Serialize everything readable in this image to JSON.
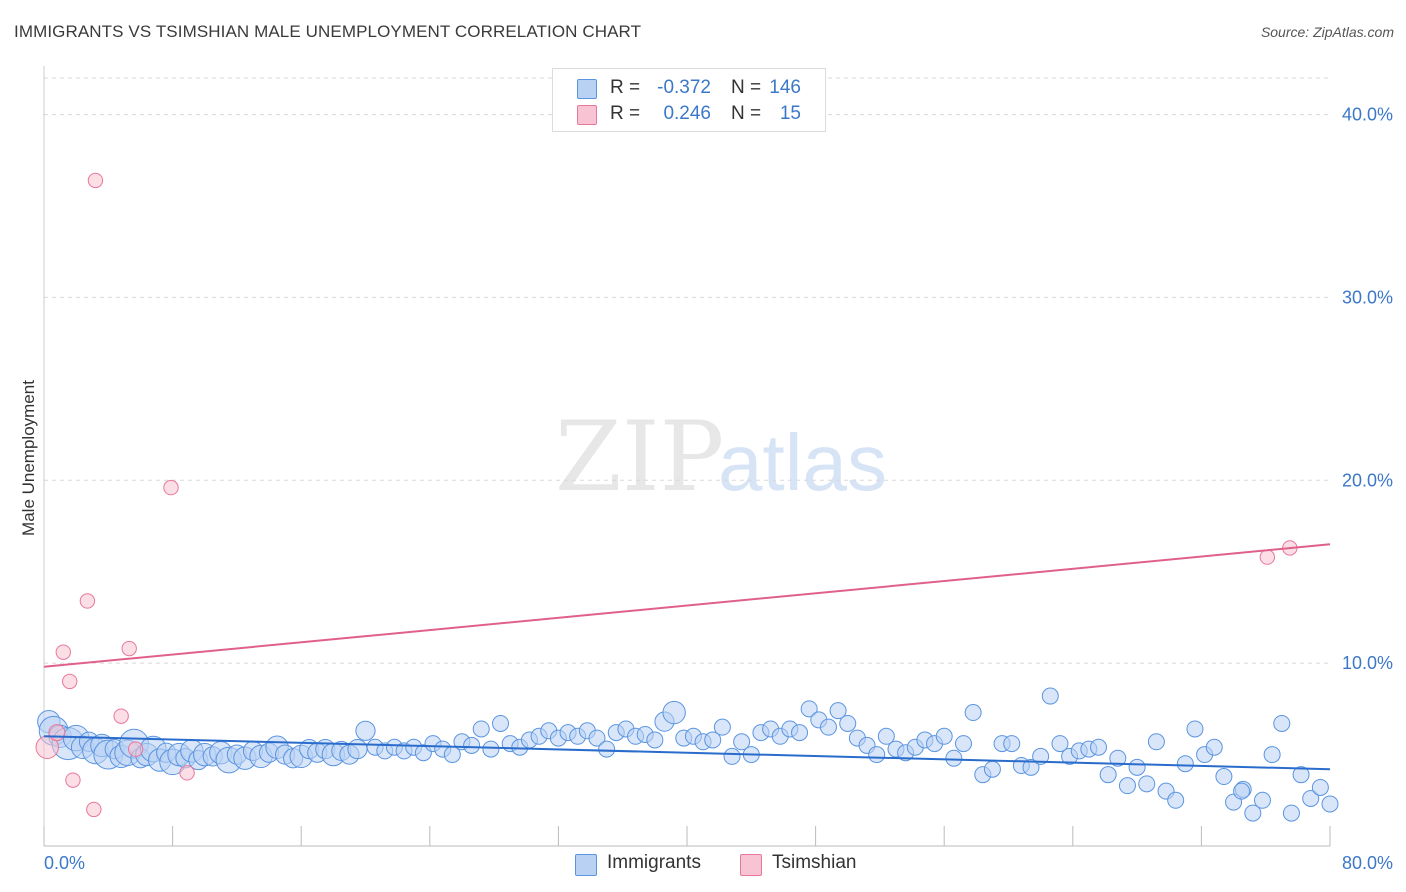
{
  "title": "IMMIGRANTS VS TSIMSHIAN MALE UNEMPLOYMENT CORRELATION CHART",
  "source": "Source: ZipAtlas.com",
  "watermark": {
    "zip": "ZIP",
    "atlas": "atlas"
  },
  "colors": {
    "blue": "#5b95e0",
    "blue_fill": "#b9d2f4",
    "blue_line": "#2a6ccc",
    "pink": "#e8789a",
    "pink_fill": "#f8c3d2",
    "pink_line": "#e0608a",
    "tick_text": "#3c78c8",
    "grid": "#d8d8d8"
  },
  "legend": {
    "rows": [
      {
        "r_label": "R =",
        "r_value": "-0.372",
        "n_label": "N =",
        "n_value": "146"
      },
      {
        "r_label": "R =",
        "r_value": "0.246",
        "n_label": "N =",
        "n_value": "15"
      }
    ]
  },
  "bottom_legend": {
    "series1": "Immigrants",
    "series2": "Tsimshian"
  },
  "chart_data": {
    "type": "scatter",
    "title": "IMMIGRANTS VS TSIMSHIAN MALE UNEMPLOYMENT CORRELATION CHART",
    "xlabel": "",
    "ylabel": "Male Unemployment",
    "xlim": [
      0,
      80
    ],
    "ylim": [
      0,
      42
    ],
    "x_tick_labels": [
      {
        "value": 0,
        "label": "0.0%"
      },
      {
        "value": 80,
        "label": "80.0%"
      }
    ],
    "y_ticks": [
      {
        "value": 10,
        "label": "10.0%"
      },
      {
        "value": 20,
        "label": "20.0%"
      },
      {
        "value": 30,
        "label": "30.0%"
      },
      {
        "value": 40,
        "label": "40.0%"
      }
    ],
    "grid": true,
    "series": [
      {
        "name": "Immigrants",
        "color": "#5b95e0",
        "R": -0.372,
        "N": 146,
        "trend": {
          "x": [
            0,
            80
          ],
          "y": [
            6.0,
            4.2
          ]
        },
        "points": [
          {
            "x": 0.3,
            "y": 6.8,
            "s": 14
          },
          {
            "x": 0.6,
            "y": 6.3,
            "s": 18
          },
          {
            "x": 1.0,
            "y": 6.0,
            "s": 14
          },
          {
            "x": 1.5,
            "y": 5.6,
            "s": 20
          },
          {
            "x": 2.0,
            "y": 5.9,
            "s": 16
          },
          {
            "x": 2.4,
            "y": 5.4,
            "s": 14
          },
          {
            "x": 2.8,
            "y": 5.7,
            "s": 12
          },
          {
            "x": 3.2,
            "y": 5.2,
            "s": 16
          },
          {
            "x": 3.6,
            "y": 5.5,
            "s": 14
          },
          {
            "x": 4.0,
            "y": 5.0,
            "s": 18
          },
          {
            "x": 4.4,
            "y": 5.3,
            "s": 12
          },
          {
            "x": 4.8,
            "y": 4.9,
            "s": 14
          },
          {
            "x": 5.2,
            "y": 5.1,
            "s": 16
          },
          {
            "x": 5.6,
            "y": 5.6,
            "s": 18
          },
          {
            "x": 6.0,
            "y": 4.8,
            "s": 12
          },
          {
            "x": 6.4,
            "y": 5.0,
            "s": 14
          },
          {
            "x": 6.8,
            "y": 5.3,
            "s": 16
          },
          {
            "x": 7.2,
            "y": 4.7,
            "s": 14
          },
          {
            "x": 7.6,
            "y": 5.1,
            "s": 12
          },
          {
            "x": 8.0,
            "y": 4.6,
            "s": 16
          },
          {
            "x": 8.4,
            "y": 5.0,
            "s": 14
          },
          {
            "x": 8.8,
            "y": 4.8,
            "s": 12
          },
          {
            "x": 9.2,
            "y": 5.2,
            "s": 14
          },
          {
            "x": 9.6,
            "y": 4.7,
            "s": 12
          },
          {
            "x": 10.0,
            "y": 5.0,
            "s": 14
          },
          {
            "x": 10.5,
            "y": 4.9,
            "s": 12
          },
          {
            "x": 11.0,
            "y": 5.1,
            "s": 14
          },
          {
            "x": 11.5,
            "y": 4.7,
            "s": 16
          },
          {
            "x": 12.0,
            "y": 5.0,
            "s": 12
          },
          {
            "x": 12.5,
            "y": 4.8,
            "s": 14
          },
          {
            "x": 13.0,
            "y": 5.2,
            "s": 12
          },
          {
            "x": 13.5,
            "y": 4.9,
            "s": 14
          },
          {
            "x": 14.0,
            "y": 5.1,
            "s": 12
          },
          {
            "x": 14.5,
            "y": 5.4,
            "s": 14
          },
          {
            "x": 15.0,
            "y": 5.0,
            "s": 12
          },
          {
            "x": 15.5,
            "y": 4.8,
            "s": 12
          },
          {
            "x": 16.0,
            "y": 4.9,
            "s": 14
          },
          {
            "x": 16.5,
            "y": 5.3,
            "s": 12
          },
          {
            "x": 17.0,
            "y": 5.1,
            "s": 12
          },
          {
            "x": 17.5,
            "y": 5.3,
            "s": 12
          },
          {
            "x": 18.0,
            "y": 5.0,
            "s": 14
          },
          {
            "x": 18.5,
            "y": 5.2,
            "s": 12
          },
          {
            "x": 19.0,
            "y": 5.0,
            "s": 12
          },
          {
            "x": 19.5,
            "y": 5.3,
            "s": 12
          },
          {
            "x": 20.0,
            "y": 6.3,
            "s": 12
          },
          {
            "x": 20.6,
            "y": 5.4,
            "s": 10
          },
          {
            "x": 21.2,
            "y": 5.2,
            "s": 10
          },
          {
            "x": 21.8,
            "y": 5.4,
            "s": 10
          },
          {
            "x": 22.4,
            "y": 5.2,
            "s": 10
          },
          {
            "x": 23.0,
            "y": 5.4,
            "s": 10
          },
          {
            "x": 23.6,
            "y": 5.1,
            "s": 10
          },
          {
            "x": 24.2,
            "y": 5.6,
            "s": 10
          },
          {
            "x": 24.8,
            "y": 5.3,
            "s": 10
          },
          {
            "x": 25.4,
            "y": 5.0,
            "s": 10
          },
          {
            "x": 26.0,
            "y": 5.7,
            "s": 10
          },
          {
            "x": 26.6,
            "y": 5.5,
            "s": 10
          },
          {
            "x": 27.2,
            "y": 6.4,
            "s": 10
          },
          {
            "x": 27.8,
            "y": 5.3,
            "s": 10
          },
          {
            "x": 28.4,
            "y": 6.7,
            "s": 10
          },
          {
            "x": 29.0,
            "y": 5.6,
            "s": 10
          },
          {
            "x": 29.6,
            "y": 5.4,
            "s": 10
          },
          {
            "x": 30.2,
            "y": 5.8,
            "s": 10
          },
          {
            "x": 30.8,
            "y": 6.0,
            "s": 10
          },
          {
            "x": 31.4,
            "y": 6.3,
            "s": 10
          },
          {
            "x": 32.0,
            "y": 5.9,
            "s": 10
          },
          {
            "x": 32.6,
            "y": 6.2,
            "s": 10
          },
          {
            "x": 33.2,
            "y": 6.0,
            "s": 10
          },
          {
            "x": 33.8,
            "y": 6.3,
            "s": 10
          },
          {
            "x": 34.4,
            "y": 5.9,
            "s": 10
          },
          {
            "x": 35.0,
            "y": 5.3,
            "s": 10
          },
          {
            "x": 35.6,
            "y": 6.2,
            "s": 10
          },
          {
            "x": 36.2,
            "y": 6.4,
            "s": 10
          },
          {
            "x": 36.8,
            "y": 6.0,
            "s": 10
          },
          {
            "x": 37.4,
            "y": 6.1,
            "s": 10
          },
          {
            "x": 38.0,
            "y": 5.8,
            "s": 10
          },
          {
            "x": 38.6,
            "y": 6.8,
            "s": 12
          },
          {
            "x": 39.2,
            "y": 7.3,
            "s": 14
          },
          {
            "x": 39.8,
            "y": 5.9,
            "s": 10
          },
          {
            "x": 40.4,
            "y": 6.0,
            "s": 10
          },
          {
            "x": 41.0,
            "y": 5.7,
            "s": 10
          },
          {
            "x": 41.6,
            "y": 5.8,
            "s": 10
          },
          {
            "x": 42.2,
            "y": 6.5,
            "s": 10
          },
          {
            "x": 42.8,
            "y": 4.9,
            "s": 10
          },
          {
            "x": 43.4,
            "y": 5.7,
            "s": 10
          },
          {
            "x": 44.0,
            "y": 5.0,
            "s": 10
          },
          {
            "x": 44.6,
            "y": 6.2,
            "s": 10
          },
          {
            "x": 45.2,
            "y": 6.4,
            "s": 10
          },
          {
            "x": 45.8,
            "y": 6.0,
            "s": 10
          },
          {
            "x": 46.4,
            "y": 6.4,
            "s": 10
          },
          {
            "x": 47.0,
            "y": 6.2,
            "s": 10
          },
          {
            "x": 47.6,
            "y": 7.5,
            "s": 10
          },
          {
            "x": 48.2,
            "y": 6.9,
            "s": 10
          },
          {
            "x": 48.8,
            "y": 6.5,
            "s": 10
          },
          {
            "x": 49.4,
            "y": 7.4,
            "s": 10
          },
          {
            "x": 50.0,
            "y": 6.7,
            "s": 10
          },
          {
            "x": 50.6,
            "y": 5.9,
            "s": 10
          },
          {
            "x": 51.2,
            "y": 5.5,
            "s": 10
          },
          {
            "x": 51.8,
            "y": 5.0,
            "s": 10
          },
          {
            "x": 52.4,
            "y": 6.0,
            "s": 10
          },
          {
            "x": 53.0,
            "y": 5.3,
            "s": 10
          },
          {
            "x": 53.6,
            "y": 5.1,
            "s": 10
          },
          {
            "x": 54.2,
            "y": 5.4,
            "s": 10
          },
          {
            "x": 54.8,
            "y": 5.8,
            "s": 10
          },
          {
            "x": 55.4,
            "y": 5.6,
            "s": 10
          },
          {
            "x": 56.0,
            "y": 6.0,
            "s": 10
          },
          {
            "x": 56.6,
            "y": 4.8,
            "s": 10
          },
          {
            "x": 57.2,
            "y": 5.6,
            "s": 10
          },
          {
            "x": 57.8,
            "y": 7.3,
            "s": 10
          },
          {
            "x": 58.4,
            "y": 3.9,
            "s": 10
          },
          {
            "x": 59.0,
            "y": 4.2,
            "s": 10
          },
          {
            "x": 59.6,
            "y": 5.6,
            "s": 10
          },
          {
            "x": 60.2,
            "y": 5.6,
            "s": 10
          },
          {
            "x": 60.8,
            "y": 4.4,
            "s": 10
          },
          {
            "x": 61.4,
            "y": 4.3,
            "s": 10
          },
          {
            "x": 62.0,
            "y": 4.9,
            "s": 10
          },
          {
            "x": 62.6,
            "y": 8.2,
            "s": 10
          },
          {
            "x": 63.2,
            "y": 5.6,
            "s": 10
          },
          {
            "x": 63.8,
            "y": 4.9,
            "s": 10
          },
          {
            "x": 64.4,
            "y": 5.2,
            "s": 10
          },
          {
            "x": 65.0,
            "y": 5.3,
            "s": 10
          },
          {
            "x": 65.6,
            "y": 5.4,
            "s": 10
          },
          {
            "x": 66.2,
            "y": 3.9,
            "s": 10
          },
          {
            "x": 66.8,
            "y": 4.8,
            "s": 10
          },
          {
            "x": 67.4,
            "y": 3.3,
            "s": 10
          },
          {
            "x": 68.0,
            "y": 4.3,
            "s": 10
          },
          {
            "x": 68.6,
            "y": 3.4,
            "s": 10
          },
          {
            "x": 69.2,
            "y": 5.7,
            "s": 10
          },
          {
            "x": 69.8,
            "y": 3.0,
            "s": 10
          },
          {
            "x": 70.4,
            "y": 2.5,
            "s": 10
          },
          {
            "x": 71.0,
            "y": 4.5,
            "s": 10
          },
          {
            "x": 71.6,
            "y": 6.4,
            "s": 10
          },
          {
            "x": 72.2,
            "y": 5.0,
            "s": 10
          },
          {
            "x": 72.8,
            "y": 5.4,
            "s": 10
          },
          {
            "x": 73.4,
            "y": 3.8,
            "s": 10
          },
          {
            "x": 74.0,
            "y": 2.4,
            "s": 10
          },
          {
            "x": 74.6,
            "y": 3.1,
            "s": 10
          },
          {
            "x": 75.2,
            "y": 1.8,
            "s": 10
          },
          {
            "x": 75.8,
            "y": 2.5,
            "s": 10
          },
          {
            "x": 76.4,
            "y": 5.0,
            "s": 10
          },
          {
            "x": 77.0,
            "y": 6.7,
            "s": 10
          },
          {
            "x": 77.6,
            "y": 1.8,
            "s": 10
          },
          {
            "x": 78.2,
            "y": 3.9,
            "s": 10
          },
          {
            "x": 78.8,
            "y": 2.6,
            "s": 10
          },
          {
            "x": 79.4,
            "y": 3.2,
            "s": 10
          },
          {
            "x": 80.0,
            "y": 2.3,
            "s": 10
          },
          {
            "x": 74.5,
            "y": 3.0,
            "s": 10
          }
        ]
      },
      {
        "name": "Tsimshian",
        "color": "#e8789a",
        "R": 0.246,
        "N": 15,
        "trend": {
          "x": [
            0,
            80
          ],
          "y": [
            9.8,
            16.5
          ]
        },
        "points": [
          {
            "x": 0.2,
            "y": 5.4,
            "s": 14
          },
          {
            "x": 0.8,
            "y": 6.2,
            "s": 10
          },
          {
            "x": 1.2,
            "y": 10.6,
            "s": 9
          },
          {
            "x": 1.6,
            "y": 9.0,
            "s": 9
          },
          {
            "x": 1.8,
            "y": 3.6,
            "s": 9
          },
          {
            "x": 2.7,
            "y": 13.4,
            "s": 9
          },
          {
            "x": 3.1,
            "y": 2.0,
            "s": 9
          },
          {
            "x": 3.2,
            "y": 36.4,
            "s": 9
          },
          {
            "x": 4.8,
            "y": 7.1,
            "s": 9
          },
          {
            "x": 5.3,
            "y": 10.8,
            "s": 9
          },
          {
            "x": 5.7,
            "y": 5.3,
            "s": 9
          },
          {
            "x": 7.9,
            "y": 19.6,
            "s": 9
          },
          {
            "x": 8.9,
            "y": 4.0,
            "s": 9
          },
          {
            "x": 76.1,
            "y": 15.8,
            "s": 9
          },
          {
            "x": 77.5,
            "y": 16.3,
            "s": 9
          }
        ]
      }
    ]
  }
}
